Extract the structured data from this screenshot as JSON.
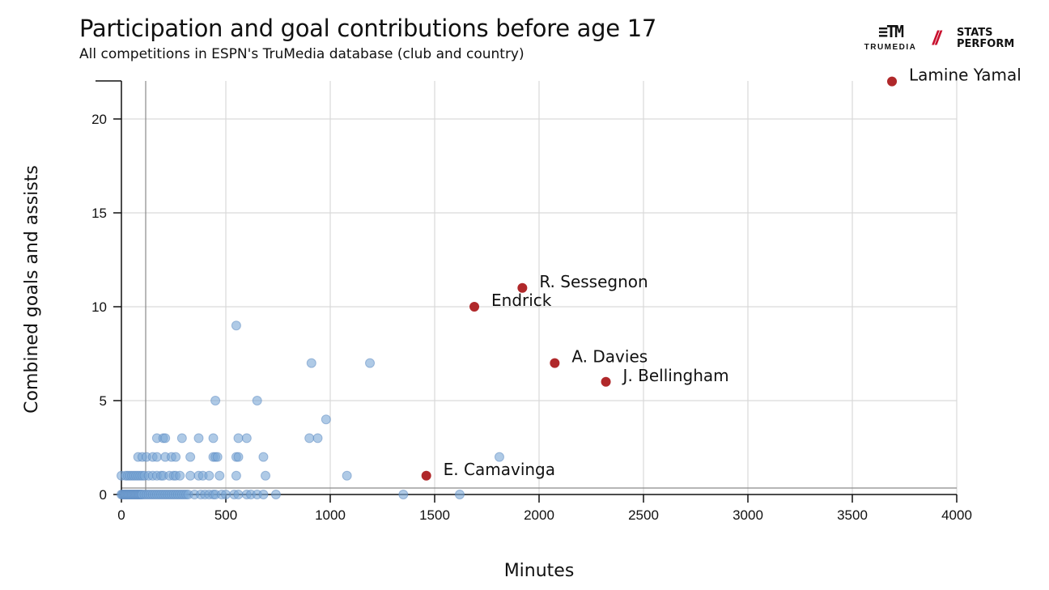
{
  "header": {
    "title": "Participation and goal contributions before age 17",
    "subtitle": "All competitions in ESPN's TruMedia database (club and country)"
  },
  "logos": {
    "trumedia_text": "TRUMEDIA",
    "stats_perform_line1": "STATS",
    "stats_perform_line2": "PERFORM"
  },
  "colors": {
    "others": "#7aa6d6",
    "highlight": "#b0282a",
    "grid": "#d9d9d9"
  },
  "chart_data": {
    "type": "scatter",
    "title": "Participation and goal contributions before age 17",
    "subtitle": "All competitions in ESPN's TruMedia database (club and country)",
    "xlabel": "Minutes",
    "ylabel": "Combined goals and assists",
    "xlim": [
      0,
      4000
    ],
    "ylim": [
      0,
      22
    ],
    "xticks": [
      0,
      500,
      1000,
      1500,
      2000,
      2500,
      3000,
      3500,
      4000
    ],
    "yticks": [
      0,
      5,
      10,
      15,
      20
    ],
    "grid": true,
    "highlighted": [
      {
        "name": "Lamine Yamal",
        "x": 3690,
        "y": 22
      },
      {
        "name": "R. Sessegnon",
        "x": 1920,
        "y": 11
      },
      {
        "name": "Endrick",
        "x": 1690,
        "y": 10
      },
      {
        "name": "A. Davies",
        "x": 2075,
        "y": 7
      },
      {
        "name": "J. Bellingham",
        "x": 2320,
        "y": 6
      },
      {
        "name": "E. Camavinga",
        "x": 1460,
        "y": 1
      }
    ],
    "others": [
      [
        0,
        0
      ],
      [
        5,
        0
      ],
      [
        10,
        0
      ],
      [
        15,
        0
      ],
      [
        20,
        0
      ],
      [
        25,
        0
      ],
      [
        30,
        0
      ],
      [
        35,
        0
      ],
      [
        40,
        0
      ],
      [
        45,
        0
      ],
      [
        50,
        0
      ],
      [
        55,
        0
      ],
      [
        60,
        0
      ],
      [
        65,
        0
      ],
      [
        70,
        0
      ],
      [
        75,
        0
      ],
      [
        80,
        0
      ],
      [
        85,
        0
      ],
      [
        90,
        0
      ],
      [
        95,
        0
      ],
      [
        100,
        0
      ],
      [
        110,
        0
      ],
      [
        120,
        0
      ],
      [
        130,
        0
      ],
      [
        140,
        0
      ],
      [
        150,
        0
      ],
      [
        160,
        0
      ],
      [
        170,
        0
      ],
      [
        180,
        0
      ],
      [
        190,
        0
      ],
      [
        200,
        0
      ],
      [
        210,
        0
      ],
      [
        220,
        0
      ],
      [
        230,
        0
      ],
      [
        240,
        0
      ],
      [
        250,
        0
      ],
      [
        260,
        0
      ],
      [
        270,
        0
      ],
      [
        280,
        0
      ],
      [
        290,
        0
      ],
      [
        300,
        0
      ],
      [
        310,
        0
      ],
      [
        320,
        0
      ],
      [
        350,
        0
      ],
      [
        380,
        0
      ],
      [
        400,
        0
      ],
      [
        420,
        0
      ],
      [
        440,
        0
      ],
      [
        450,
        0
      ],
      [
        480,
        0
      ],
      [
        500,
        0
      ],
      [
        540,
        0
      ],
      [
        560,
        0
      ],
      [
        600,
        0
      ],
      [
        620,
        0
      ],
      [
        650,
        0
      ],
      [
        680,
        0
      ],
      [
        740,
        0
      ],
      [
        1350,
        0
      ],
      [
        1620,
        0
      ],
      [
        0,
        1
      ],
      [
        20,
        1
      ],
      [
        30,
        1
      ],
      [
        40,
        1
      ],
      [
        50,
        1
      ],
      [
        60,
        1
      ],
      [
        70,
        1
      ],
      [
        80,
        1
      ],
      [
        90,
        1
      ],
      [
        100,
        1
      ],
      [
        110,
        1
      ],
      [
        130,
        1
      ],
      [
        150,
        1
      ],
      [
        170,
        1
      ],
      [
        190,
        1
      ],
      [
        200,
        1
      ],
      [
        230,
        1
      ],
      [
        250,
        1
      ],
      [
        260,
        1
      ],
      [
        280,
        1
      ],
      [
        330,
        1
      ],
      [
        370,
        1
      ],
      [
        390,
        1
      ],
      [
        420,
        1
      ],
      [
        470,
        1
      ],
      [
        550,
        1
      ],
      [
        690,
        1
      ],
      [
        1080,
        1
      ],
      [
        80,
        2
      ],
      [
        100,
        2
      ],
      [
        120,
        2
      ],
      [
        150,
        2
      ],
      [
        170,
        2
      ],
      [
        210,
        2
      ],
      [
        240,
        2
      ],
      [
        260,
        2
      ],
      [
        330,
        2
      ],
      [
        440,
        2
      ],
      [
        450,
        2
      ],
      [
        460,
        2
      ],
      [
        550,
        2
      ],
      [
        560,
        2
      ],
      [
        680,
        2
      ],
      [
        1810,
        2
      ],
      [
        170,
        3
      ],
      [
        200,
        3
      ],
      [
        210,
        3
      ],
      [
        290,
        3
      ],
      [
        370,
        3
      ],
      [
        440,
        3
      ],
      [
        560,
        3
      ],
      [
        600,
        3
      ],
      [
        900,
        3
      ],
      [
        940,
        3
      ],
      [
        980,
        4
      ],
      [
        450,
        5
      ],
      [
        650,
        5
      ],
      [
        910,
        7
      ],
      [
        1190,
        7
      ],
      [
        550,
        9
      ]
    ]
  }
}
